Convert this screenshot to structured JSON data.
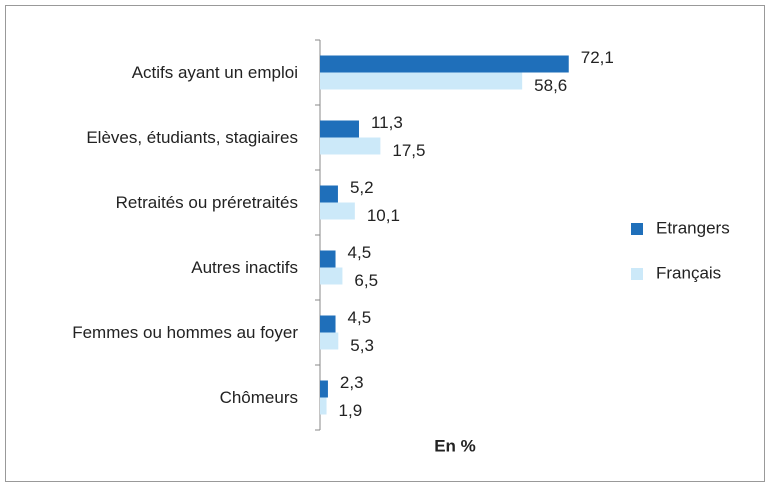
{
  "chart_data": {
    "type": "bar",
    "orientation": "horizontal",
    "x_label": "En %",
    "categories": [
      "Actifs ayant un emploi",
      "Elèves, étudiants, stagiaires",
      "Retraités ou préretraités",
      "Autres inactifs",
      "Femmes ou hommes au foyer",
      "Chômeurs"
    ],
    "series": [
      {
        "name": "Etrangers",
        "color": "#1f6fba",
        "values": [
          72.1,
          11.3,
          5.2,
          4.5,
          4.5,
          2.3
        ],
        "value_labels": [
          "72,1",
          "11,3",
          "5,2",
          "4,5",
          "4,5",
          "2,3"
        ]
      },
      {
        "name": "Français",
        "color": "#cce9f9",
        "values": [
          58.6,
          17.5,
          10.1,
          6.5,
          5.3,
          1.9
        ],
        "value_labels": [
          "58,6",
          "17,5",
          "10,1",
          "6,5",
          "5,3",
          "1,9"
        ]
      }
    ],
    "xlim": [
      0,
      80
    ],
    "legend": "right"
  }
}
